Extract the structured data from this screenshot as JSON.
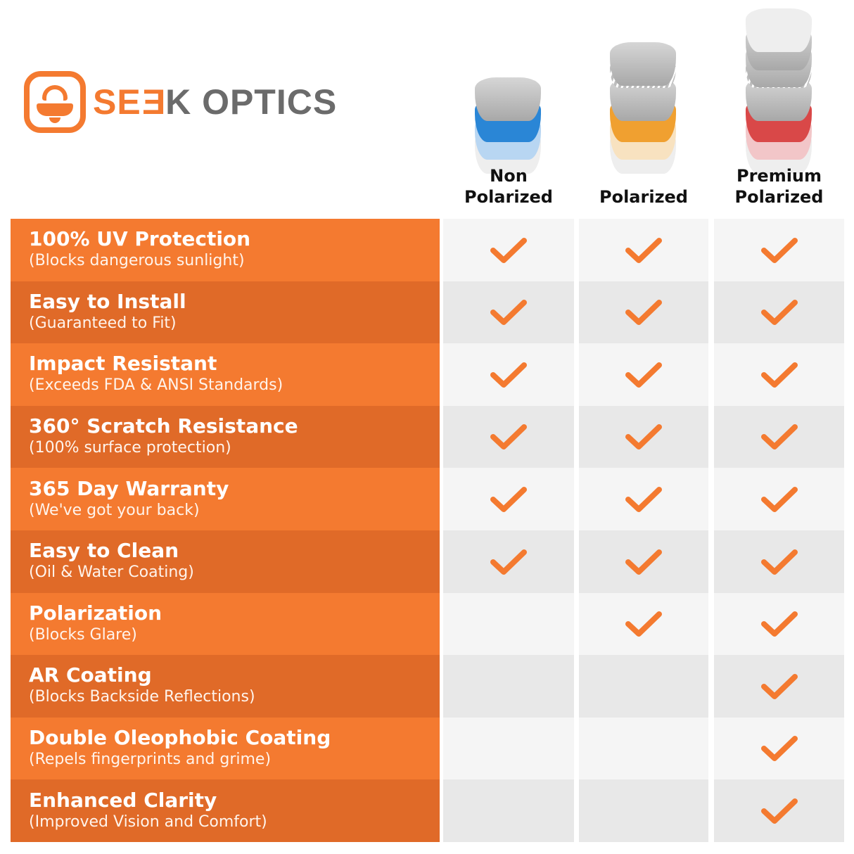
{
  "brand": {
    "name_orange": "SE",
    "name_orange_e": "E",
    "name_gray": "K OPTICS",
    "full": "SEEK OPTICS"
  },
  "colors": {
    "accent": "#f47a30",
    "accent_dark": "#e06a28",
    "cell_light": "#f5f5f5",
    "cell_dark": "#e8e8e8",
    "check": "#f47a30"
  },
  "columns": [
    {
      "label": "Non\nPolarized",
      "lens_color": "#2a86d6",
      "lens_tint": "#b8d6f2"
    },
    {
      "label": "Polarized",
      "lens_color": "#f0a030",
      "lens_tint": "#f8e2c0"
    },
    {
      "label": "Premium\nPolarized",
      "lens_color": "#d94848",
      "lens_tint": "#f2c6c8"
    }
  ],
  "rows": [
    {
      "title": "100% UV Protection",
      "subtitle": "(Blocks dangerous sunlight)",
      "checks": [
        true,
        true,
        true
      ]
    },
    {
      "title": "Easy to Install",
      "subtitle": "(Guaranteed to Fit)",
      "checks": [
        true,
        true,
        true
      ]
    },
    {
      "title": "Impact Resistant",
      "subtitle": "(Exceeds FDA & ANSI Standards)",
      "checks": [
        true,
        true,
        true
      ]
    },
    {
      "title": "360° Scratch Resistance",
      "subtitle": "(100% surface protection)",
      "checks": [
        true,
        true,
        true
      ]
    },
    {
      "title": "365 Day Warranty",
      "subtitle": "(We've got your back)",
      "checks": [
        true,
        true,
        true
      ]
    },
    {
      "title": "Easy to Clean",
      "subtitle": "(Oil & Water Coating)",
      "checks": [
        true,
        true,
        true
      ]
    },
    {
      "title": "Polarization",
      "subtitle": "(Blocks Glare)",
      "checks": [
        false,
        true,
        true
      ]
    },
    {
      "title": "AR Coating",
      "subtitle": "(Blocks Backside Reflections)",
      "checks": [
        false,
        false,
        true
      ]
    },
    {
      "title": "Double Oleophobic Coating",
      "subtitle": "(Repels fingerprints and grime)",
      "checks": [
        false,
        false,
        true
      ]
    },
    {
      "title": "Enhanced Clarity",
      "subtitle": "(Improved Vision and Comfort)",
      "checks": [
        false,
        false,
        true
      ]
    }
  ]
}
